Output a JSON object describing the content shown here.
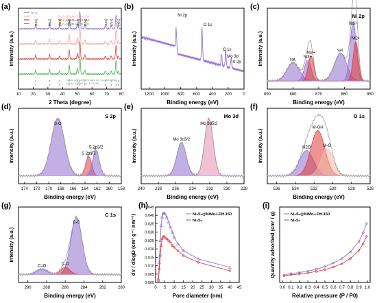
{
  "figure": {
    "label": "Multi-panel characterization figure"
  },
  "colors": {
    "purple": "#8f6fd0",
    "purple_light": "#c9b8ee",
    "red": "#e03c3c",
    "red_light": "#f2a4a0",
    "peach": "#f3b9a6",
    "green": "#4cb050",
    "gray": "#9a9a9a",
    "pink": "#e58fb3"
  },
  "chart_data": [
    {
      "id": "a",
      "type": "line",
      "panel_label": "(a)",
      "xlabel": "2 Theta (degree)",
      "ylabel": "Intensity (a.u.)",
      "xlim": [
        10,
        80
      ],
      "xticks": [
        10,
        20,
        30,
        40,
        50,
        60,
        70,
        80
      ],
      "legend": [
        "Ni3S2",
        "Ni3S2@NiMo-LDH-100",
        "Ni3S2@NiMo-LDH-150",
        "Ni3S2@NiMo-LDH-200"
      ],
      "series": [
        {
          "name": "Ni3S2",
          "offset": 3,
          "color": "#8f6fd0"
        },
        {
          "name": "Ni3S2@NiMo-LDH-100",
          "offset": 2,
          "color": "#f2a4a0"
        },
        {
          "name": "Ni3S2@NiMo-LDH-150",
          "offset": 1,
          "color": "#e03c3c"
        },
        {
          "name": "Ni3S2@NiMo-LDH-200",
          "offset": 0,
          "color": "#4cb050"
        }
      ],
      "peaks": [
        {
          "x": 21.7,
          "h": 0.55,
          "label": "(101)"
        },
        {
          "x": 31.1,
          "h": 0.65,
          "label": "(012)"
        },
        {
          "x": 38.0,
          "h": 0.45,
          "label": "(003)"
        },
        {
          "x": 44.5,
          "h": 1.3,
          "label": "(202)"
        },
        {
          "x": 50.1,
          "h": 0.8,
          "label": "(113)"
        },
        {
          "x": 51.8,
          "h": 2.6,
          "label": ""
        },
        {
          "x": 55.2,
          "h": 0.55,
          "label": "(104)"
        },
        {
          "x": 69.2,
          "h": 0.45,
          "label": "(122)"
        },
        {
          "x": 73.1,
          "h": 0.45,
          "label": "(214)"
        },
        {
          "x": 76.4,
          "h": 2.0,
          "label": ""
        },
        {
          "x": 77.9,
          "h": 0.4,
          "label": "(401)"
        }
      ],
      "reference_cards": [
        "NiMo-LDH JCPDS card no: 01-082-8040",
        "Ni3S2 JCPDS No. 44-1418"
      ]
    },
    {
      "id": "b",
      "type": "line",
      "panel_label": "(b)",
      "xlabel": "Binding energy (eV)",
      "ylabel": "Intensity (a.u.)",
      "xlim": [
        1300,
        0
      ],
      "xticks": [
        1200,
        1000,
        800,
        600,
        400,
        200,
        0
      ],
      "annotations": [
        "Ni 2p",
        "O 1s",
        "C 1s",
        "Mo 3d",
        "S 2p"
      ],
      "peaks": [
        {
          "x": 856,
          "h": 0.38,
          "label": "Ni 2p"
        },
        {
          "x": 531,
          "h": 0.55,
          "label": "O 1s"
        },
        {
          "x": 285,
          "h": 0.2,
          "label": "C 1s"
        },
        {
          "x": 232,
          "h": 0.28,
          "label": "Mo 3d"
        },
        {
          "x": 163,
          "h": 0.18,
          "label": "S 2p"
        }
      ]
    },
    {
      "id": "c",
      "type": "line",
      "panel_label": "(c)",
      "title": "Ni 2p",
      "xlabel": "Binding energy (eV)",
      "ylabel": "Intensity (a.u.)",
      "xlim": [
        890,
        850
      ],
      "xticks": [
        890,
        880,
        870,
        860,
        850
      ],
      "annotations": [
        "Ni 2p3/2",
        "Ni 2p1/2",
        "Ni3+",
        "Ni2+",
        "sat."
      ],
      "components": [
        {
          "center": 880.0,
          "height": 0.28,
          "width": 2.4,
          "color": "#8f6fd0",
          "label": "sat."
        },
        {
          "center": 874.3,
          "height": 0.32,
          "width": 1.3,
          "color": "#8f6fd0",
          "label": "Ni3+"
        },
        {
          "center": 873.0,
          "height": 0.38,
          "width": 1.1,
          "color": "#e03c3c",
          "label": "Ni2+"
        },
        {
          "center": 861.5,
          "height": 0.42,
          "width": 2.4,
          "color": "#8f6fd0",
          "label": "sat."
        },
        {
          "center": 856.6,
          "height": 0.9,
          "width": 1.2,
          "color": "#8f6fd0",
          "label": "Ni3+"
        },
        {
          "center": 855.6,
          "height": 0.6,
          "width": 1.0,
          "color": "#e03c3c",
          "label": "Ni2+"
        }
      ]
    },
    {
      "id": "d",
      "type": "line",
      "panel_label": "(d)",
      "title": "S 2p",
      "xlabel": "Binding energy (eV)",
      "ylabel": "Intensity (a.u.)",
      "xlim": [
        175,
        158
      ],
      "xticks": [
        174,
        172,
        170,
        168,
        166,
        164,
        162,
        160,
        158
      ],
      "annotations": [
        "S-O",
        "S 2p1/2",
        "S 2p3/2"
      ],
      "components": [
        {
          "center": 168.5,
          "height": 0.95,
          "width": 1.1,
          "color": "#8f6fd0",
          "label": "S-O"
        },
        {
          "center": 163.4,
          "height": 0.32,
          "width": 0.5,
          "color": "#e03c3c",
          "label": "S 2p1/2"
        },
        {
          "center": 162.2,
          "height": 0.42,
          "width": 0.55,
          "color": "#8f6fd0",
          "label": "S 2p3/2"
        }
      ]
    },
    {
      "id": "e",
      "type": "line",
      "panel_label": "(e)",
      "title": "Mo 3d",
      "xlabel": "Binding energy (eV)",
      "ylabel": "Intensity (a.u.)",
      "xlim": [
        240,
        228
      ],
      "xticks": [
        240,
        238,
        236,
        234,
        232,
        230,
        228
      ],
      "annotations": [
        "Mo 3d5/2",
        "Mo 3d3/2"
      ],
      "components": [
        {
          "center": 235.3,
          "height": 0.55,
          "width": 0.55,
          "color": "#8f6fd0",
          "label": "Mo 3d3/2"
        },
        {
          "center": 232.1,
          "height": 0.95,
          "width": 0.5,
          "color": "#e58fb3",
          "label": "Mo 3d5/2"
        }
      ]
    },
    {
      "id": "f",
      "type": "line",
      "panel_label": "(f)",
      "title": "O 1s",
      "xlabel": "Binding energy (eV)",
      "ylabel": "Intensity (a.u.)",
      "xlim": [
        537,
        526
      ],
      "xticks": [
        536,
        534,
        532,
        530,
        528,
        526
      ],
      "annotations": [
        "M-OH",
        "H2O",
        "M-O"
      ],
      "components": [
        {
          "center": 532.8,
          "height": 0.42,
          "width": 0.75,
          "color": "#8f6fd0",
          "label": "H2O"
        },
        {
          "center": 531.6,
          "height": 0.75,
          "width": 0.75,
          "color": "#e03c3c",
          "label": "M-OH"
        },
        {
          "center": 530.6,
          "height": 0.45,
          "width": 0.65,
          "color": "#f3b9a6",
          "label": "M-O"
        }
      ]
    },
    {
      "id": "g",
      "type": "line",
      "panel_label": "(g)",
      "title": "C 1s",
      "xlabel": "Binding energy (eV)",
      "ylabel": "Intensity (a.u.)",
      "xlim": [
        291,
        280
      ],
      "xticks": [
        290,
        288,
        286,
        284,
        282,
        280
      ],
      "annotations": [
        "C-C",
        "C-O",
        "C=O"
      ],
      "components": [
        {
          "center": 284.8,
          "height": 0.95,
          "width": 0.6,
          "color": "#8f6fd0",
          "label": "C-C"
        },
        {
          "center": 286.0,
          "height": 0.12,
          "width": 0.5,
          "color": "#e03c3c",
          "label": "C-O"
        },
        {
          "center": 288.5,
          "height": 0.09,
          "width": 0.6,
          "color": "#8f6fd0",
          "label": "C=O"
        }
      ]
    },
    {
      "id": "h",
      "type": "line",
      "panel_label": "(h)",
      "xlabel": "Pore diameter (nm)",
      "ylabel": "dV / dlogD (cm³ g⁻¹ nm⁻¹)",
      "xlim": [
        0,
        45
      ],
      "ylim": [
        0.0,
        0.045
      ],
      "xticks": [
        0,
        5,
        10,
        15,
        20,
        25,
        30,
        35,
        40,
        45
      ],
      "yticks": [
        0.0,
        0.005,
        0.01,
        0.015,
        0.02,
        0.025,
        0.03,
        0.035,
        0.04,
        0.045
      ],
      "ytick_labels": [
        "0.000",
        "0.005",
        "0.010",
        "0.015",
        "0.020",
        "0.025",
        "0.030",
        "0.035",
        "0.040",
        "0.045"
      ],
      "legend": [
        "Ni3S2@NiMo-LDH-150",
        "Ni3S2"
      ],
      "series": [
        {
          "name": "Ni3S2@NiMo-LDH-150",
          "color": "#8f6fd0",
          "marker": "triangle",
          "x": [
            1.5,
            2,
            2.5,
            3,
            3.5,
            4,
            4.5,
            5,
            6,
            7,
            8,
            9,
            10,
            12,
            15,
            23,
            40
          ],
          "y": [
            0.002,
            0.012,
            0.025,
            0.034,
            0.039,
            0.041,
            0.0415,
            0.041,
            0.039,
            0.036,
            0.033,
            0.03,
            0.027,
            0.023,
            0.019,
            0.014,
            0.009
          ]
        },
        {
          "name": "Ni3S2",
          "color": "#e03c3c",
          "marker": "circle",
          "x": [
            1.5,
            2,
            2.5,
            3,
            3.5,
            4,
            4.5,
            5,
            6,
            7,
            8,
            9,
            10,
            12,
            15,
            23,
            40
          ],
          "y": [
            0.001,
            0.008,
            0.016,
            0.022,
            0.026,
            0.027,
            0.0275,
            0.027,
            0.026,
            0.025,
            0.024,
            0.022,
            0.021,
            0.019,
            0.016,
            0.012,
            0.007
          ]
        }
      ]
    },
    {
      "id": "i",
      "type": "line",
      "panel_label": "(i)",
      "xlabel": "Relative pressure (P / P0)",
      "ylabel": "Quantity adsorbed (cm³ / g)",
      "xlim": [
        0,
        1.0
      ],
      "xticks": [
        0.0,
        0.1,
        0.2,
        0.3,
        0.4,
        0.5,
        0.6,
        0.7,
        0.8,
        0.9,
        1.0
      ],
      "legend": [
        "Ni3S2@NiMo-LDH-150",
        "Ni3S2"
      ],
      "series": [
        {
          "name": "Ni3S2@NiMo-LDH-150",
          "color": "#8f6fd0",
          "x": [
            0.02,
            0.1,
            0.2,
            0.3,
            0.4,
            0.5,
            0.6,
            0.7,
            0.8,
            0.9,
            0.95,
            0.99
          ],
          "y": [
            0.5,
            0.9,
            1.2,
            1.6,
            2.1,
            2.8,
            3.8,
            5.0,
            6.8,
            9.6,
            12.0,
            14.5
          ]
        },
        {
          "name": "Ni3S2",
          "color": "#e03c3c",
          "x": [
            0.02,
            0.1,
            0.2,
            0.3,
            0.4,
            0.5,
            0.6,
            0.7,
            0.8,
            0.9,
            0.95,
            0.99
          ],
          "y": [
            0.3,
            0.6,
            0.8,
            1.1,
            1.5,
            2.0,
            2.7,
            3.6,
            5.0,
            7.2,
            9.0,
            11.0
          ]
        }
      ]
    }
  ]
}
